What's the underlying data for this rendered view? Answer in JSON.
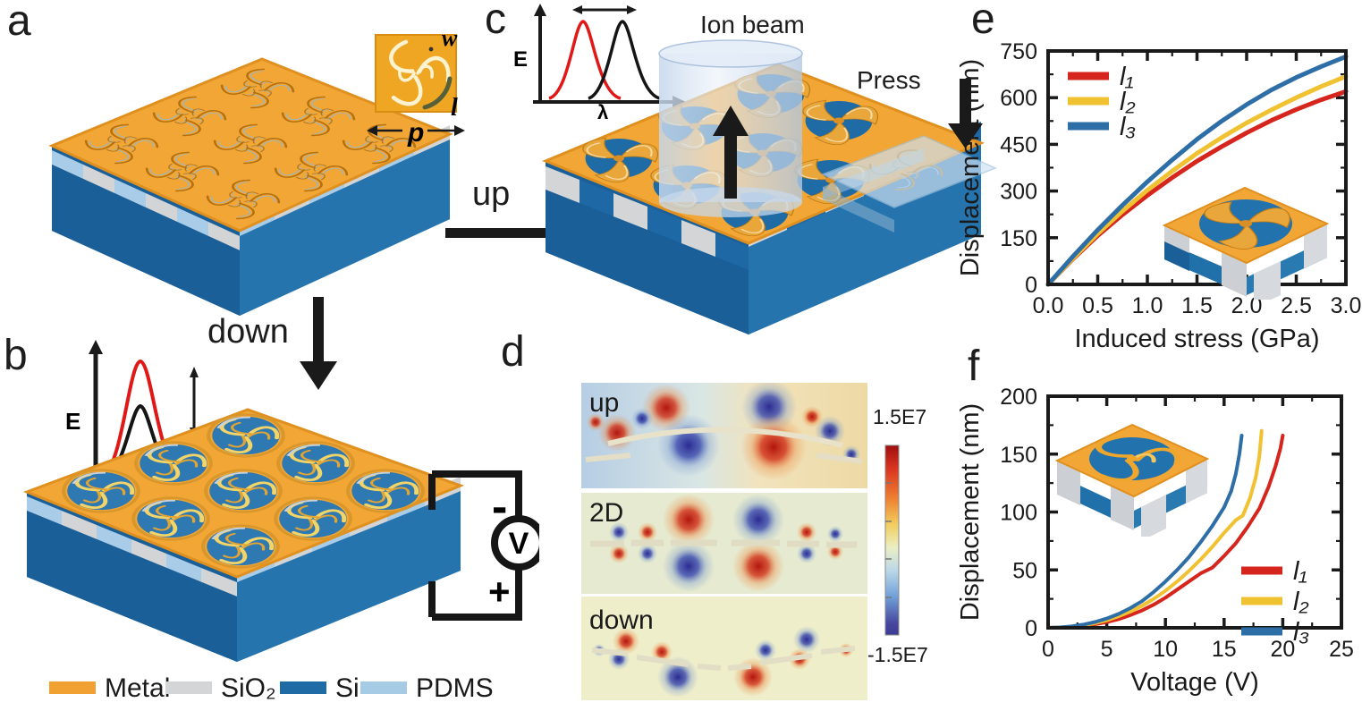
{
  "panels": {
    "a": "a",
    "b": "b",
    "c": "c",
    "d": "d",
    "e": "e",
    "f": "f"
  },
  "transitions": {
    "up": "up",
    "down": "down"
  },
  "annotations": {
    "ion_beam": "Ion beam",
    "press": "Press"
  },
  "unit_cell": {
    "w": "w",
    "l": "l",
    "p": "p"
  },
  "spectra": {
    "intensity": "E",
    "wavelength": "λ"
  },
  "circuit": {
    "voltmeter": "V",
    "minus": "-",
    "plus": "+"
  },
  "colormap": {
    "labels": [
      "up",
      "2D",
      "down"
    ],
    "colorbar_max": "1.5E7",
    "colorbar_min": "-1.5E7"
  },
  "materials": [
    {
      "name": "Metal",
      "color": "#f0a132"
    },
    {
      "name": "SiO₂",
      "color": "#d3d5d7"
    },
    {
      "name": "Si",
      "color": "#1f6ba5"
    },
    {
      "name": "PDMS",
      "color": "#a6cbe5"
    }
  ],
  "chart_data": [
    {
      "id": "e",
      "type": "line",
      "xlabel": "Induced stress (GPa)",
      "ylabel": "Displacement (nm)",
      "xlim": [
        0,
        3
      ],
      "ylim": [
        0,
        750
      ],
      "xticks": [
        0,
        0.5,
        1.0,
        1.5,
        2.0,
        2.5,
        3.0
      ],
      "xtick_labels": [
        "0.0",
        "0.5",
        "1.0",
        "1.5",
        "2.0",
        "2.5",
        "3.0"
      ],
      "yticks": [
        0,
        150,
        300,
        450,
        600,
        750
      ],
      "ytick_labels": [
        "0",
        "150",
        "300",
        "450",
        "600",
        "750"
      ],
      "grid": false,
      "legend_position": "top-left",
      "series": [
        {
          "name": "l₁",
          "color": "#d6251d",
          "points": [
            [
              0,
              0
            ],
            [
              0.25,
              82
            ],
            [
              0.5,
              157
            ],
            [
              0.75,
              224
            ],
            [
              1.0,
              286
            ],
            [
              1.25,
              343
            ],
            [
              1.5,
              396
            ],
            [
              1.75,
              443
            ],
            [
              2.0,
              487
            ],
            [
              2.25,
              527
            ],
            [
              2.5,
              562
            ],
            [
              2.75,
              593
            ],
            [
              3.0,
              620
            ]
          ]
        },
        {
          "name": "l₂",
          "color": "#f0c232",
          "points": [
            [
              0,
              0
            ],
            [
              0.25,
              84
            ],
            [
              0.5,
              163
            ],
            [
              0.75,
              236
            ],
            [
              1.0,
              303
            ],
            [
              1.25,
              364
            ],
            [
              1.5,
              421
            ],
            [
              1.75,
              472
            ],
            [
              2.0,
              519
            ],
            [
              2.25,
              561
            ],
            [
              2.5,
              600
            ],
            [
              2.75,
              636
            ],
            [
              3.0,
              668
            ]
          ]
        },
        {
          "name": "l₃",
          "color": "#2e6ea6",
          "points": [
            [
              0,
              0
            ],
            [
              0.25,
              90
            ],
            [
              0.5,
              175
            ],
            [
              0.75,
              255
            ],
            [
              1.0,
              330
            ],
            [
              1.25,
              400
            ],
            [
              1.5,
              466
            ],
            [
              1.75,
              525
            ],
            [
              2.0,
              578
            ],
            [
              2.25,
              625
            ],
            [
              2.5,
              665
            ],
            [
              2.75,
              700
            ],
            [
              3.0,
              732
            ]
          ]
        }
      ]
    },
    {
      "id": "f",
      "type": "line",
      "xlabel": "Voltage (V)",
      "ylabel": "Displacement (nm)",
      "xlim": [
        0,
        25
      ],
      "ylim": [
        0,
        200
      ],
      "xticks": [
        0,
        5,
        10,
        15,
        20,
        25
      ],
      "xtick_labels": [
        "0",
        "5",
        "10",
        "15",
        "20",
        "25"
      ],
      "yticks": [
        0,
        50,
        100,
        150,
        200
      ],
      "ytick_labels": [
        "0",
        "50",
        "100",
        "150",
        "200"
      ],
      "grid": false,
      "legend_position": "bottom-right",
      "series": [
        {
          "name": "l₁",
          "color": "#d6251d",
          "points": [
            [
              0,
              0
            ],
            [
              1,
              0.2
            ],
            [
              2,
              0.8
            ],
            [
              3,
              1.8
            ],
            [
              4,
              3
            ],
            [
              5,
              5
            ],
            [
              6,
              7.5
            ],
            [
              7,
              11
            ],
            [
              8,
              15
            ],
            [
              9,
              20
            ],
            [
              10,
              26
            ],
            [
              11,
              33
            ],
            [
              12,
              40
            ],
            [
              13,
              47
            ],
            [
              14,
              52
            ],
            [
              15,
              62
            ],
            [
              16,
              73
            ],
            [
              17,
              87
            ],
            [
              18,
              103
            ],
            [
              18.8,
              122
            ],
            [
              19.4,
              140
            ],
            [
              19.8,
              155
            ],
            [
              20,
              166
            ]
          ]
        },
        {
          "name": "l₂",
          "color": "#f0c232",
          "points": [
            [
              0,
              0
            ],
            [
              1,
              0.3
            ],
            [
              2,
              1
            ],
            [
              3,
              2.2
            ],
            [
              4,
              4
            ],
            [
              5,
              6.5
            ],
            [
              6,
              10
            ],
            [
              7,
              14
            ],
            [
              8,
              19
            ],
            [
              9,
              25
            ],
            [
              10,
              32
            ],
            [
              11,
              40
            ],
            [
              12,
              49
            ],
            [
              13,
              59
            ],
            [
              14,
              70
            ],
            [
              15,
              82
            ],
            [
              16,
              93
            ],
            [
              16.6,
              97
            ],
            [
              17.2,
              112
            ],
            [
              17.7,
              130
            ],
            [
              18,
              148
            ],
            [
              18.2,
              170
            ]
          ]
        },
        {
          "name": "l₃",
          "color": "#2e6ea6",
          "points": [
            [
              0,
              0
            ],
            [
              1,
              0.4
            ],
            [
              2,
              1.2
            ],
            [
              3,
              2.8
            ],
            [
              4,
              5
            ],
            [
              5,
              8
            ],
            [
              6,
              12
            ],
            [
              7,
              17
            ],
            [
              8,
              23
            ],
            [
              9,
              31
            ],
            [
              10,
              40
            ],
            [
              11,
              50
            ],
            [
              12,
              61
            ],
            [
              13,
              74
            ],
            [
              14,
              88
            ],
            [
              15,
              104
            ],
            [
              15.6,
              118
            ],
            [
              16,
              133
            ],
            [
              16.3,
              150
            ],
            [
              16.5,
              166
            ]
          ]
        }
      ]
    }
  ]
}
